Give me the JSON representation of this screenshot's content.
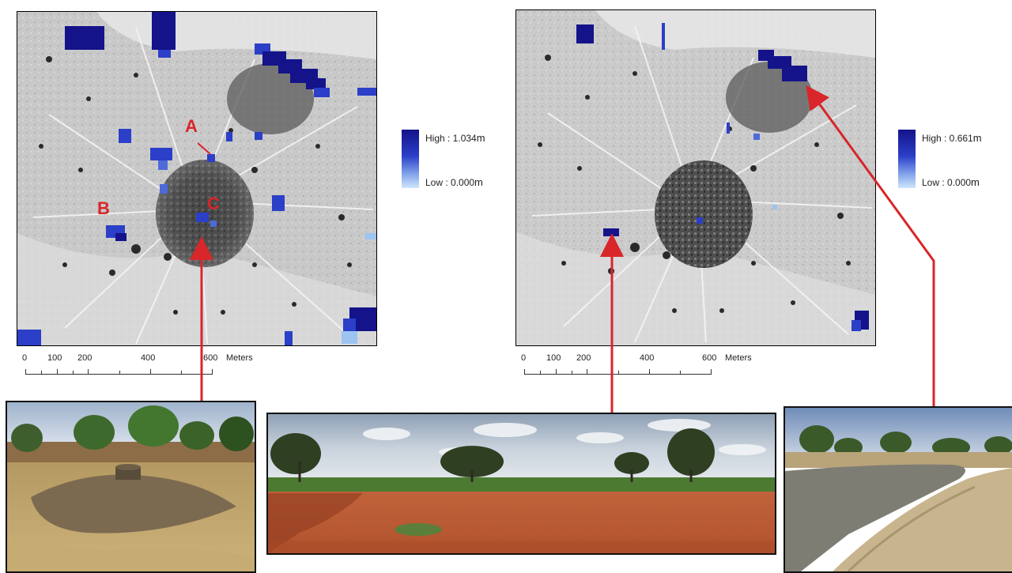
{
  "left_map": {
    "site_labels": [
      "A",
      "B",
      "C"
    ],
    "legend": {
      "high": "High : 1.034",
      "low": "Low : 0.000",
      "unit": "m"
    },
    "scale": {
      "ticks": [
        "0",
        "100",
        "200",
        "400",
        "600"
      ],
      "unit": "Meters"
    }
  },
  "right_map": {
    "legend": {
      "high": "High : 0.661",
      "low": "Low : 0.000",
      "unit": "m"
    },
    "scale": {
      "ticks": [
        "0",
        "100",
        "200",
        "400",
        "600"
      ],
      "unit": "Meters"
    }
  },
  "colors": {
    "flood_high": "#14138a",
    "flood_mid": "#2b3fc8",
    "flood_low": "#9cc4f0",
    "arrow": "#d8262a"
  }
}
